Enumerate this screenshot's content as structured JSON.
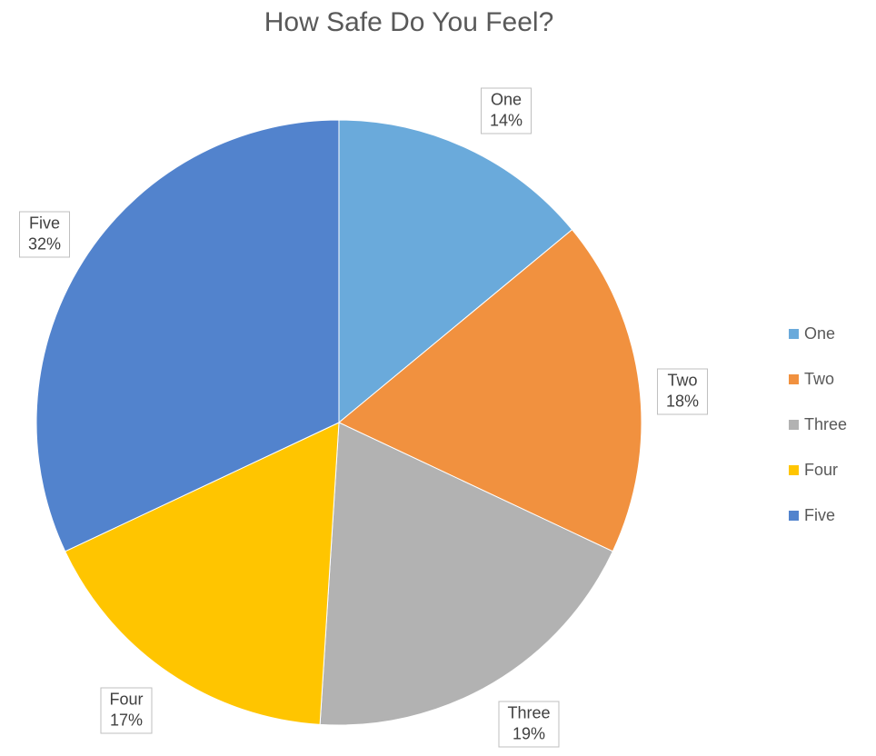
{
  "chart_data": {
    "type": "pie",
    "title": "How Safe Do You Feel?",
    "legend_position": "right",
    "slices": [
      {
        "label": "One",
        "value": 14,
        "display": "14%",
        "color": "#6aaadb"
      },
      {
        "label": "Two",
        "value": 18,
        "display": "18%",
        "color": "#f1913f"
      },
      {
        "label": "Three",
        "value": 19,
        "display": "19%",
        "color": "#b2b2b2"
      },
      {
        "label": "Four",
        "value": 17,
        "display": "17%",
        "color": "#ffc500"
      },
      {
        "label": "Five",
        "value": 32,
        "display": "32%",
        "color": "#5283cd"
      }
    ]
  }
}
